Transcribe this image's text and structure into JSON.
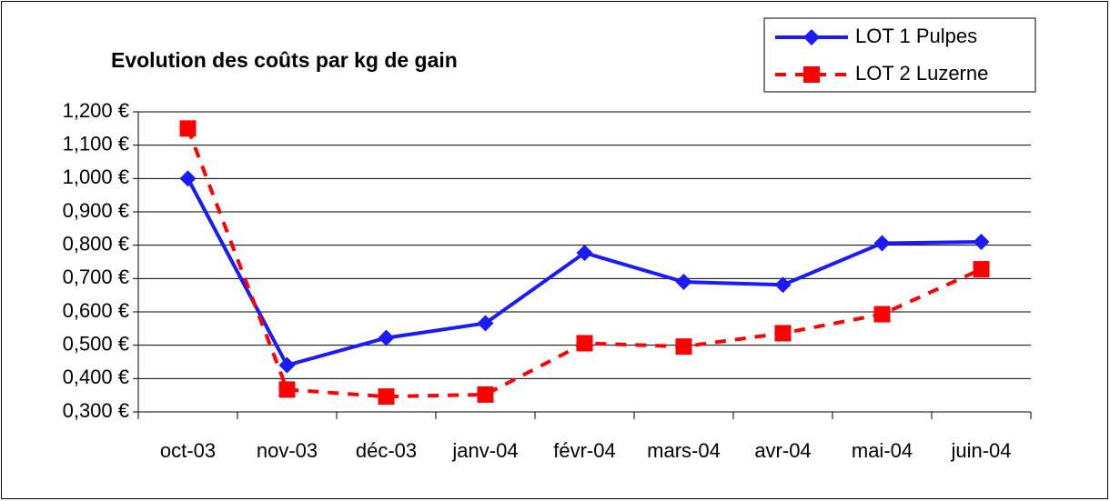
{
  "chart_data": {
    "type": "line",
    "title": "Evolution des coûts par kg de gain",
    "categories": [
      "oct-03",
      "nov-03",
      "déc-03",
      "janv-04",
      "févr-04",
      "mars-04",
      "avr-04",
      "mai-04",
      "juin-04"
    ],
    "series": [
      {
        "name": "LOT 1 Pulpes",
        "color": "#1a1aff",
        "marker": "diamond",
        "dashed": false,
        "values": [
          1.0,
          0.44,
          0.522,
          0.566,
          0.777,
          0.69,
          0.681,
          0.806,
          0.81
        ]
      },
      {
        "name": "LOT 2 Luzerne",
        "color": "#ff0000",
        "marker": "square",
        "dashed": true,
        "values": [
          1.15,
          0.367,
          0.346,
          0.352,
          0.506,
          0.496,
          0.536,
          0.593,
          0.728
        ]
      }
    ],
    "ylim": [
      0.3,
      1.2
    ],
    "yticks": [
      {
        "value": 0.3,
        "label": "0,300 €"
      },
      {
        "value": 0.4,
        "label": "0,400 €"
      },
      {
        "value": 0.5,
        "label": "0,500 €"
      },
      {
        "value": 0.6,
        "label": "0,600 €"
      },
      {
        "value": 0.7,
        "label": "0,700 €"
      },
      {
        "value": 0.8,
        "label": "0,800 €"
      },
      {
        "value": 0.9,
        "label": "0,900 €"
      },
      {
        "value": 1.0,
        "label": "1,000 €"
      },
      {
        "value": 1.1,
        "label": "1,100 €"
      },
      {
        "value": 1.2,
        "label": "1,200 €"
      }
    ],
    "grid": true,
    "legend": "top-right"
  }
}
